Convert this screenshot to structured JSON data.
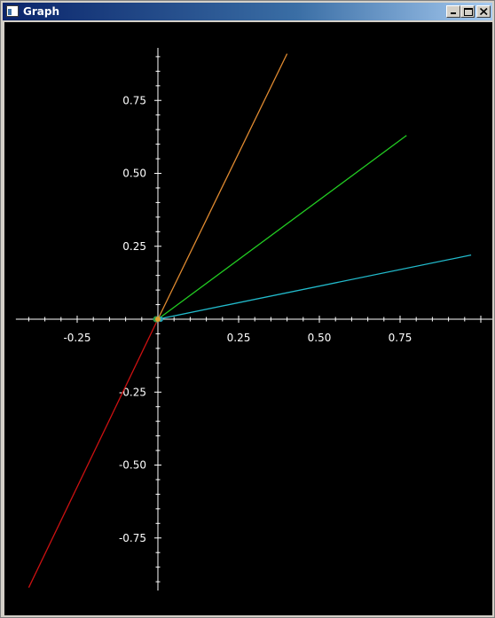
{
  "window": {
    "title": "Graph",
    "background": "#000000"
  },
  "chart_data": {
    "type": "line",
    "title": "",
    "xlabel": "",
    "ylabel": "",
    "xlim": [
      -0.44,
      1.08
    ],
    "ylim": [
      -0.93,
      0.93
    ],
    "grid": false,
    "axis_color": "#ffffff",
    "x_ticks": [
      {
        "value": -0.25,
        "label": "-0.25"
      },
      {
        "value": 0.25,
        "label": "0.25"
      },
      {
        "value": 0.5,
        "label": "0.50"
      },
      {
        "value": 0.75,
        "label": "0.75"
      }
    ],
    "y_ticks": [
      {
        "value": 0.75,
        "label": "0.75"
      },
      {
        "value": 0.5,
        "label": "0.50"
      },
      {
        "value": 0.25,
        "label": "0.25"
      },
      {
        "value": -0.25,
        "label": "-0.25"
      },
      {
        "value": -0.5,
        "label": "-0.50"
      },
      {
        "value": -0.75,
        "label": "-0.75"
      }
    ],
    "series": [
      {
        "color": "#e08a30",
        "x": [
          0,
          0.4
        ],
        "y": [
          0,
          0.91
        ]
      },
      {
        "color": "#22cc22",
        "x": [
          0,
          0.77
        ],
        "y": [
          0,
          0.63
        ]
      },
      {
        "color": "#22bbcc",
        "x": [
          0,
          0.97
        ],
        "y": [
          0,
          0.22
        ]
      },
      {
        "color": "#cc1111",
        "x": [
          0,
          -0.4
        ],
        "y": [
          0,
          -0.92
        ]
      }
    ]
  }
}
